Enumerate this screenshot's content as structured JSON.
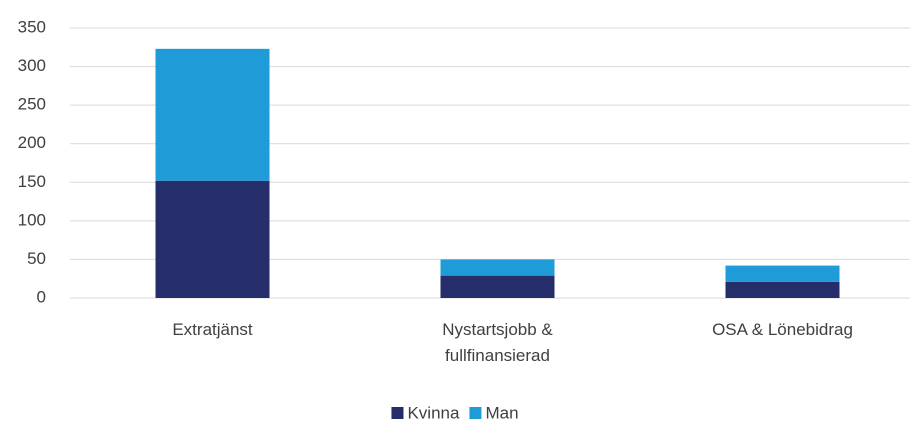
{
  "chart_data": {
    "type": "stacked_bar",
    "categories": [
      "Extratjänst",
      "Nystartsjobb & fullfinansierad",
      "OSA & Lönebidrag"
    ],
    "series": [
      {
        "name": "Kvinna",
        "color": "#252e6b",
        "values": [
          152,
          29,
          21
        ]
      },
      {
        "name": "Man",
        "color": "#1f9bd7",
        "values": [
          171,
          21,
          21
        ]
      }
    ],
    "ylim": [
      0,
      350
    ],
    "yticks": [
      0,
      50,
      100,
      150,
      200,
      250,
      300,
      350
    ],
    "grid": true,
    "legend": "bottom"
  }
}
